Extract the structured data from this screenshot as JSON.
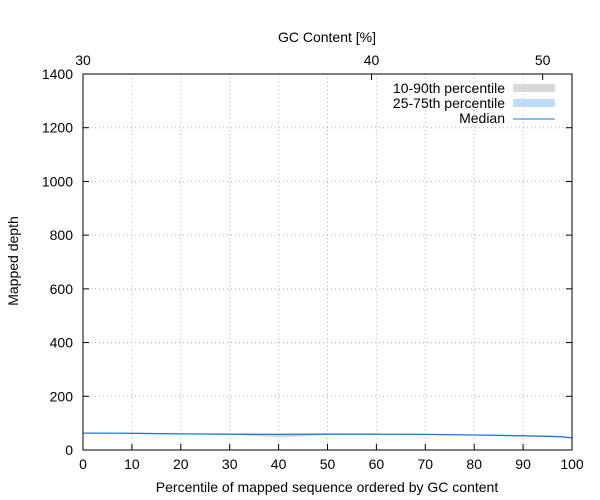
{
  "chart_data": {
    "type": "area",
    "title": "",
    "xlabel": "Percentile of mapped sequence ordered by GC content",
    "ylabel": "Mapped depth",
    "x2label": "GC Content [%]",
    "xlim": [
      0,
      100
    ],
    "ylim": [
      0,
      1400
    ],
    "x_ticks": [
      0,
      10,
      20,
      30,
      40,
      50,
      60,
      70,
      80,
      90,
      100
    ],
    "y_ticks": [
      0,
      200,
      400,
      600,
      800,
      1000,
      1200,
      1400
    ],
    "x2_ticks": [
      {
        "label": "30",
        "x": 0
      },
      {
        "label": "40",
        "x": 59
      },
      {
        "label": "50",
        "x": 94
      }
    ],
    "grid": true,
    "legend_position": "top-right",
    "colors": {
      "band_10_90": "#d9d9d9",
      "band_25_75": "#bcdcf7",
      "median": "#1f77d4"
    },
    "series": [
      {
        "name": "10-90th percentile",
        "x": [
          0,
          10,
          20,
          30,
          35,
          38,
          42,
          45,
          50,
          60,
          70,
          80,
          90,
          95,
          98,
          100
        ],
        "lo": [
          62,
          61,
          59,
          58,
          52,
          48,
          47,
          50,
          57,
          58,
          57,
          55,
          52,
          50,
          48,
          44
        ],
        "hi": [
          64,
          63,
          61,
          60,
          60,
          60,
          60,
          60,
          60,
          60,
          59,
          57,
          54,
          52,
          50,
          47
        ]
      },
      {
        "name": "25-75th percentile",
        "x": [
          0,
          10,
          20,
          30,
          40,
          50,
          60,
          70,
          80,
          90,
          95,
          98,
          100
        ],
        "lo": [
          62,
          61,
          59,
          58,
          57,
          58,
          58,
          57,
          55,
          52,
          50,
          48,
          44
        ],
        "hi": [
          64,
          63,
          61,
          60,
          60,
          60,
          60,
          59,
          57,
          54,
          52,
          50,
          47
        ]
      },
      {
        "name": "Median",
        "x": [
          0,
          10,
          20,
          30,
          40,
          50,
          60,
          70,
          80,
          90,
          95,
          98,
          100
        ],
        "y": [
          63,
          62,
          60,
          59,
          58,
          59,
          59,
          58,
          56,
          53,
          51,
          49,
          45
        ]
      }
    ]
  }
}
